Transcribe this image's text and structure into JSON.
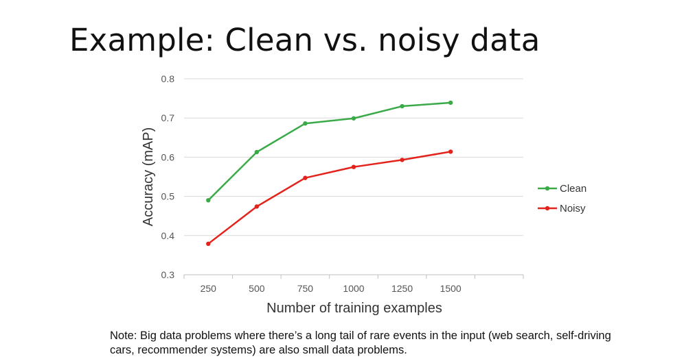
{
  "slide": {
    "title": "Example: Clean vs. noisy data",
    "note": "Note: Big data problems where there’s a long tail of rare events in the input (web search, self-driving cars, recommender systems) are also small data problems."
  },
  "chart_data": {
    "type": "line",
    "xlabel": "Number of training examples",
    "ylabel": "Accuracy (mAP)",
    "categories": [
      "250",
      "500",
      "750",
      "1000",
      "1250",
      "1500"
    ],
    "ylim": [
      0.3,
      0.8
    ],
    "yticks": [
      "0.3",
      "0.4",
      "0.5",
      "0.6",
      "0.7",
      "0.8"
    ],
    "grid": "horizontal",
    "legend_position": "right",
    "series": [
      {
        "name": "Clean",
        "color": "#3aaa48",
        "values": [
          0.49,
          0.613,
          0.686,
          0.699,
          0.73,
          0.739
        ]
      },
      {
        "name": "Noisy",
        "color": "#e3231b",
        "values": [
          0.379,
          0.474,
          0.547,
          0.575,
          0.593,
          0.614
        ]
      }
    ]
  }
}
